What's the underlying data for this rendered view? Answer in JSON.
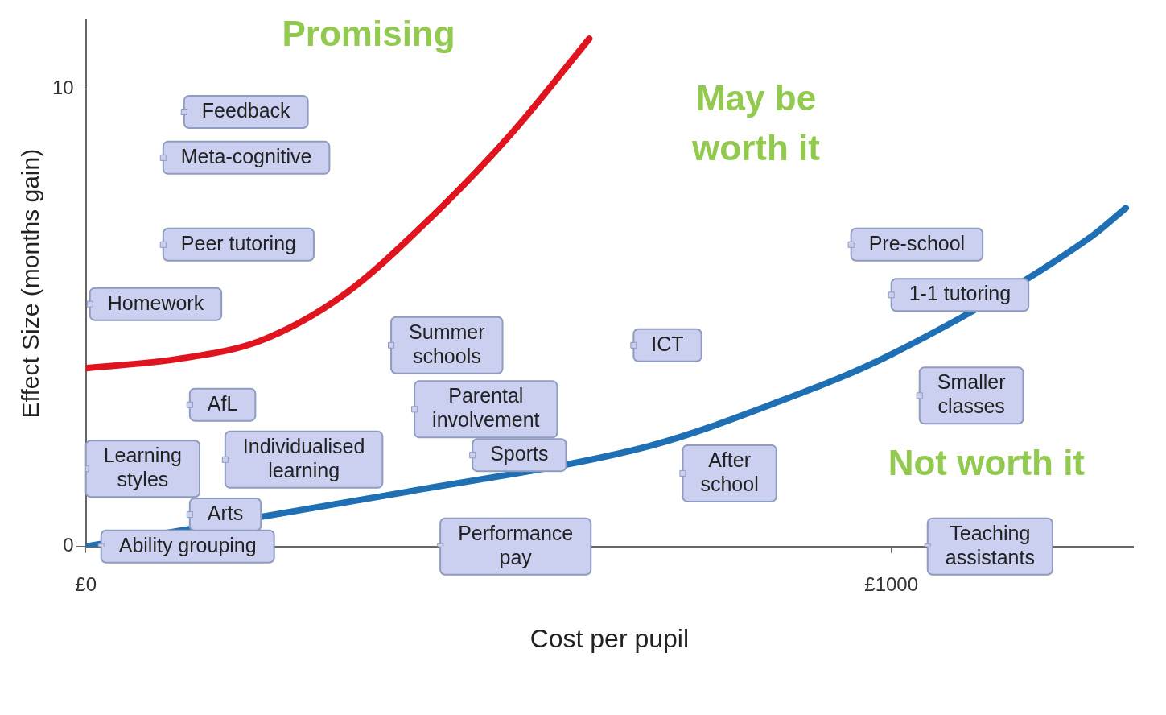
{
  "chart_data": {
    "type": "line",
    "xlabel": "Cost per pupil",
    "ylabel": "Effect Size (months gain)",
    "xlim": [
      0,
      1300
    ],
    "ylim": [
      0,
      11.5
    ],
    "xticks": [
      {
        "value": 0,
        "label": "£0"
      },
      {
        "value": 1000,
        "label": "£1000"
      }
    ],
    "yticks": [
      0,
      10
    ],
    "grid": false,
    "legend": false,
    "series": [
      {
        "color": "#e0141e",
        "x": [
          0,
          114,
          217,
          320,
          423,
          527,
          625
        ],
        "values": [
          3.9,
          4.1,
          4.5,
          5.5,
          7.1,
          9.0,
          11.1
        ]
      },
      {
        "color": "#1f6fb5",
        "x": [
          0,
          400,
          700,
          850,
          1000,
          1250,
          1291
        ],
        "values": [
          0,
          1.2,
          2.2,
          3.1,
          4.2,
          6.8,
          7.4
        ]
      },
      {
        "type": "scatter",
        "color": "#ccd0f0",
        "marker": "square",
        "x": [
          122,
          96,
          96,
          5,
          379,
          680,
          950,
          1000,
          1035,
          129,
          408,
          0,
          173,
          480,
          741,
          129,
          19,
          440,
          1045
        ],
        "values": [
          9.5,
          8.5,
          6.6,
          5.3,
          4.4,
          4.4,
          6.6,
          5.5,
          3.3,
          3.1,
          3.0,
          1.7,
          1.9,
          2.0,
          1.6,
          0.7,
          0,
          0,
          0
        ],
        "value_labels": [
          "Feedback",
          "Meta-cognitive",
          "Peer tutoring",
          "Homework",
          "Summer\nschools",
          "ICT",
          "Pre-school",
          "1-1 tutoring",
          "Smaller\nclasses",
          "AfL",
          "Parental\ninvolvement",
          "Learning\nstyles",
          "Individualised\nlearning",
          "Sports",
          "After\nschool",
          "Arts",
          "Ability grouping",
          "Performance\npay",
          "Teaching\nassistants"
        ]
      }
    ],
    "annotations": [
      "Promising",
      "May be\nworth it",
      "Not worth it"
    ]
  }
}
